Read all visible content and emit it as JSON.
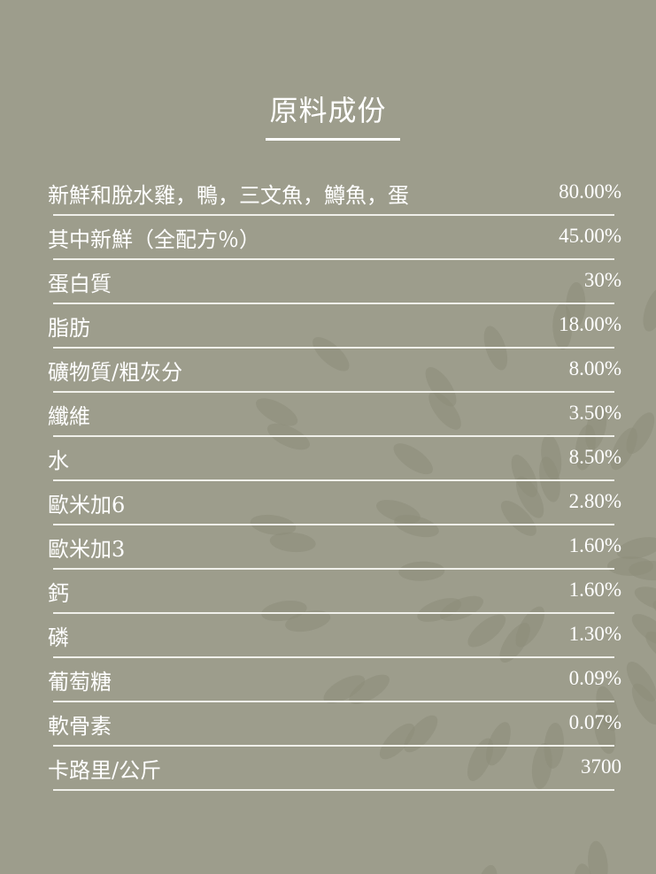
{
  "title": "原料成份",
  "colors": {
    "background": "#9d9d8c",
    "leaf": "#8c8c7a",
    "text": "#ffffff"
  },
  "rows": [
    {
      "label": "新鮮和脫水雞，鴨，三文魚，鱒魚，蛋",
      "value": "80.00%"
    },
    {
      "label": "其中新鮮（全配方％）",
      "value": "45.00%"
    },
    {
      "label": "蛋白質",
      "value": "30%"
    },
    {
      "label": "脂肪",
      "value": "18.00%"
    },
    {
      "label": "礦物質/粗灰分",
      "value": "8.00%"
    },
    {
      "label": "纖維",
      "value": "3.50%"
    },
    {
      "label": "水",
      "value": "8.50%"
    },
    {
      "label": "歐米加6",
      "value": "2.80%"
    },
    {
      "label": "歐米加3",
      "value": "1.60%"
    },
    {
      "label": "鈣",
      "value": "1.60%"
    },
    {
      "label": "磷",
      "value": "1.30%"
    },
    {
      "label": "葡萄糖",
      "value": "0.09%"
    },
    {
      "label": "軟骨素",
      "value": "0.07%"
    },
    {
      "label": "卡路里/公斤",
      "value": "3700"
    }
  ]
}
